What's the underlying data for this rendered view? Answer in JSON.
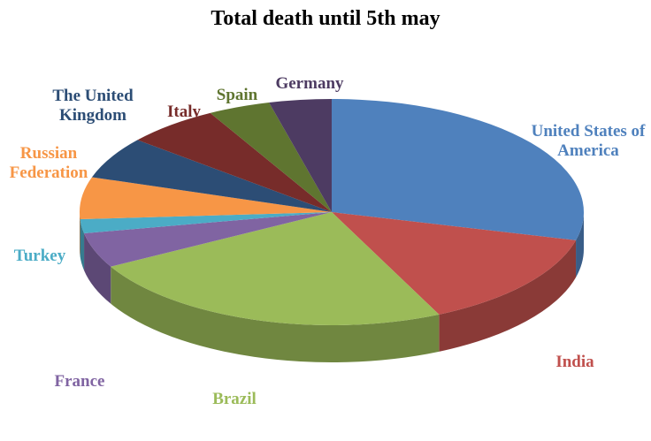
{
  "chart_data": {
    "type": "pie3d",
    "title": "Total death until 5th may",
    "categories": [
      "United States of America",
      "India",
      "Brazil",
      "France",
      "Turkey",
      "Russian Federation",
      "The United Kingdom",
      "Italy",
      "Spain",
      "Germany"
    ],
    "values": [
      29,
      14,
      24,
      5,
      2,
      6,
      6,
      6,
      4,
      4
    ],
    "colors": [
      "#4f81bd",
      "#c0504d",
      "#9bbb59",
      "#8064a2",
      "#4bacc6",
      "#f79646",
      "#2c4d75",
      "#772c2a",
      "#5f7530",
      "#4d3b62"
    ]
  }
}
